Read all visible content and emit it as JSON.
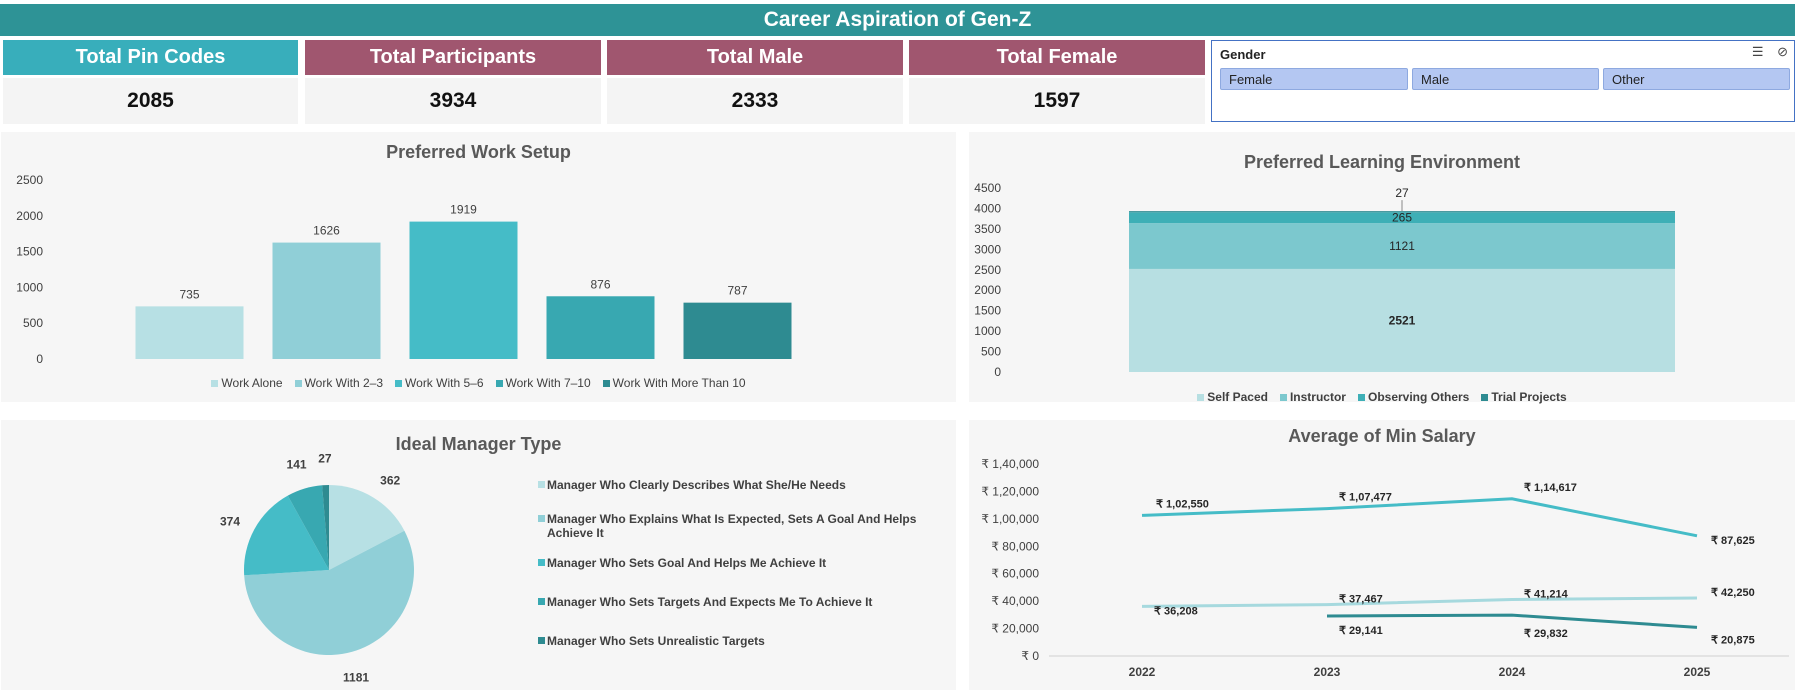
{
  "header": {
    "title": "Career Aspiration of Gen-Z"
  },
  "kpis": [
    {
      "label": "Total Pin Codes",
      "value": "2085",
      "color": "#38aebb"
    },
    {
      "label": "Total Participants",
      "value": "3934",
      "color": "#a0566f"
    },
    {
      "label": "Total Male",
      "value": "2333",
      "color": "#a0566f"
    },
    {
      "label": "Total Female",
      "value": "1597",
      "color": "#a0566f"
    }
  ],
  "slicer": {
    "title": "Gender",
    "items": [
      "Female",
      "Male",
      "Other"
    ],
    "icons": [
      "multi-select-icon",
      "clear-filter-icon"
    ]
  },
  "chart_data": [
    {
      "type": "bar",
      "title": "Preferred Work Setup",
      "categories": [
        "Work Alone",
        "Work With 2–3",
        "Work With 5–6",
        "Work With 7–10",
        "Work With More Than 10"
      ],
      "values": [
        735,
        1626,
        1919,
        876,
        787
      ],
      "data_labels": [
        "735",
        "1626",
        "1919",
        "876",
        "787"
      ],
      "colors": [
        "#b7e0e4",
        "#90cfd7",
        "#45bcc7",
        "#38a8b1",
        "#2e8b91"
      ],
      "ylim": [
        0,
        2500
      ],
      "yticks": [
        "0",
        "500",
        "1000",
        "1500",
        "2000",
        "2500"
      ],
      "legend": "bottom",
      "grid": false
    },
    {
      "type": "bar",
      "stacked": true,
      "title": "Preferred Learning Environment",
      "series": [
        {
          "name": "Self Paced",
          "values": [
            2521
          ],
          "label": "2521"
        },
        {
          "name": "Instructor",
          "values": [
            1121
          ],
          "label": "1121"
        },
        {
          "name": "Observing Others",
          "values": [
            265
          ],
          "label": "265"
        },
        {
          "name": "Trial Projects",
          "values": [
            27
          ],
          "label": "27"
        }
      ],
      "colors": [
        "#b7dfe2",
        "#7cc8ce",
        "#3eafb6",
        "#2e8b91"
      ],
      "ylim": [
        0,
        4500
      ],
      "yticks": [
        "0",
        "500",
        "1000",
        "1500",
        "2000",
        "2500",
        "3000",
        "3500",
        "4000",
        "4500"
      ],
      "legend": "bottom",
      "grid": false
    },
    {
      "type": "pie",
      "title": "Ideal Manager Type",
      "labels": [
        "Manager Who Clearly Describes What She/He Needs",
        "Manager Who Explains What Is Expected, Sets A Goal And Helps Achieve It",
        "Manager Who Sets Goal And Helps Me Achieve It",
        "Manager Who Sets Targets And Expects Me To Achieve It",
        "Manager Who Sets Unrealistic Targets"
      ],
      "values": [
        362,
        1181,
        374,
        141,
        27
      ],
      "data_labels": [
        "362",
        "1181",
        "374",
        "141",
        "27"
      ],
      "colors": [
        "#b7e0e4",
        "#90cfd7",
        "#45bcc7",
        "#38a8b1",
        "#2e8b91"
      ],
      "legend": "right"
    },
    {
      "type": "line",
      "title": "Average of Min Salary",
      "categories": [
        "2022",
        "2023",
        "2024",
        "2025"
      ],
      "series": [
        {
          "values": [
            102550,
            107477,
            114617,
            87625
          ],
          "labels": [
            "₹ 1,02,550",
            "₹ 1,07,477",
            "₹ 1,14,617",
            "₹ 87,625"
          ],
          "color": "#45bcc7"
        },
        {
          "values": [
            36208,
            37467,
            41214,
            42250
          ],
          "labels": [
            "₹ 36,208",
            "₹ 37,467",
            "₹ 41,214",
            "₹ 42,250"
          ],
          "color": "#a6d9de"
        },
        {
          "values": [
            null,
            29141,
            29832,
            20875
          ],
          "labels": [
            "",
            "₹ 29,141",
            "₹ 29,832",
            "₹ 20,875"
          ],
          "color": "#2e8b91"
        }
      ],
      "ylim": [
        0,
        140000
      ],
      "yticks": [
        "₹ 0",
        "₹ 20,000",
        "₹ 40,000",
        "₹ 60,000",
        "₹ 80,000",
        "₹ 1,00,000",
        "₹ 1,20,000",
        "₹ 1,40,000"
      ],
      "grid": false
    }
  ]
}
